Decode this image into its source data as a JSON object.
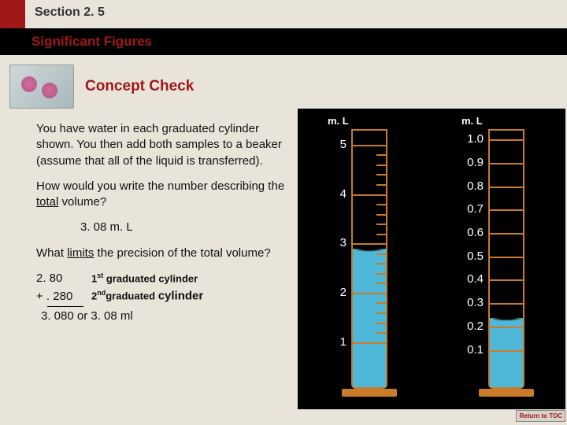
{
  "header": {
    "section": "Section 2. 5",
    "subtitle": "Significant Figures",
    "concept": "Concept Check"
  },
  "body": {
    "intro": "You have water in each graduated cylinder shown. You then add both samples to a beaker (assume that all of the liquid is transferred).",
    "q1a": "How would you write the number describing the ",
    "q1b": "total",
    "q1c": " volume?",
    "ans1": "3. 08 m. L",
    "q2a": "What ",
    "q2b": "limits",
    "q2c": " the precision of the total volume?"
  },
  "calc": {
    "r1n": "2. 80",
    "r1l_pre": "1",
    "r1l_sup": "st",
    "r1l_post": " graduated cylinder",
    "r2n": "+ . 280",
    "r2l_pre": "2",
    "r2l_sup": "nd",
    "r2l_post": "graduated ",
    "r2l_big": "cylinder",
    "res": "3. 080 or 3. 08 ml"
  },
  "cyl1": {
    "ml": "m. L",
    "labels": [
      {
        "v": "5",
        "pct": 6
      },
      {
        "v": "4",
        "pct": 25
      },
      {
        "v": "3",
        "pct": 44
      },
      {
        "v": "2",
        "pct": 63
      },
      {
        "v": "1",
        "pct": 82
      }
    ],
    "majors": [
      6,
      25,
      44,
      63,
      82
    ],
    "water_color": "#4fb8d8",
    "tube_color": "#c97b2a"
  },
  "cyl2": {
    "ml": "m. L",
    "labels": [
      {
        "v": "1.0",
        "pct": 4
      },
      {
        "v": "0.9",
        "pct": 13
      },
      {
        "v": "0.8",
        "pct": 22
      },
      {
        "v": "0.7",
        "pct": 31
      },
      {
        "v": "0.6",
        "pct": 40
      },
      {
        "v": "0.5",
        "pct": 49
      },
      {
        "v": "0.4",
        "pct": 58
      },
      {
        "v": "0.3",
        "pct": 67
      },
      {
        "v": "0.2",
        "pct": 76
      },
      {
        "v": "0.1",
        "pct": 85
      }
    ],
    "majors": [
      4,
      13,
      22,
      31,
      40,
      49,
      58,
      67,
      76,
      85
    ],
    "water_color": "#4fb8d8",
    "tube_color": "#c97b2a"
  },
  "return": "Return to TOC"
}
